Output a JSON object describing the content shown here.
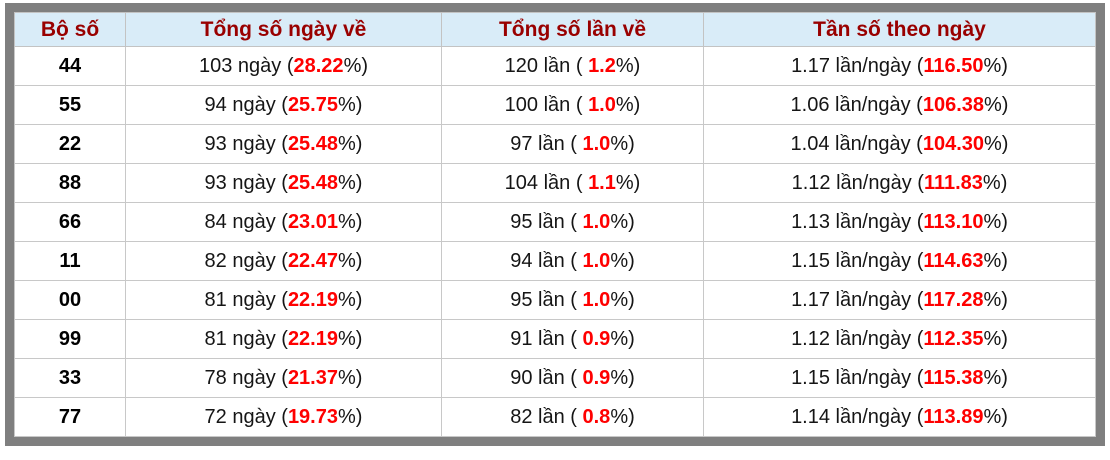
{
  "colors": {
    "frame_gray": "#7f7f7f",
    "header_background": "#d9ecf8",
    "header_text_red": "#990000",
    "percent_red": "#ff0000",
    "cell_border_gray": "#c8c8c8",
    "cell_background": "#ffffff"
  },
  "table": {
    "columns": [
      "Bộ số",
      "Tổng số ngày về",
      "Tổng số lần về",
      "Tần số theo ngày"
    ],
    "rows": [
      {
        "pair": "44",
        "days_prefix": "103 ngày (",
        "days_pct": "28.22",
        "days_suffix": "%)",
        "times_prefix": "120 lần ( ",
        "times_pct": "1.2",
        "times_suffix": "%)",
        "freq_prefix": "1.17 lần/ngày (",
        "freq_pct": "116.50",
        "freq_suffix": "%)"
      },
      {
        "pair": "55",
        "days_prefix": "94 ngày (",
        "days_pct": "25.75",
        "days_suffix": "%)",
        "times_prefix": "100 lần ( ",
        "times_pct": "1.0",
        "times_suffix": "%)",
        "freq_prefix": "1.06 lần/ngày (",
        "freq_pct": "106.38",
        "freq_suffix": "%)"
      },
      {
        "pair": "22",
        "days_prefix": "93 ngày (",
        "days_pct": "25.48",
        "days_suffix": "%)",
        "times_prefix": "97 lần ( ",
        "times_pct": "1.0",
        "times_suffix": "%)",
        "freq_prefix": "1.04 lần/ngày (",
        "freq_pct": "104.30",
        "freq_suffix": "%)"
      },
      {
        "pair": "88",
        "days_prefix": "93 ngày (",
        "days_pct": "25.48",
        "days_suffix": "%)",
        "times_prefix": "104 lần ( ",
        "times_pct": "1.1",
        "times_suffix": "%)",
        "freq_prefix": "1.12 lần/ngày (",
        "freq_pct": "111.83",
        "freq_suffix": "%)"
      },
      {
        "pair": "66",
        "days_prefix": "84 ngày (",
        "days_pct": "23.01",
        "days_suffix": "%)",
        "times_prefix": "95 lần ( ",
        "times_pct": "1.0",
        "times_suffix": "%)",
        "freq_prefix": "1.13 lần/ngày (",
        "freq_pct": "113.10",
        "freq_suffix": "%)"
      },
      {
        "pair": "11",
        "days_prefix": "82 ngày (",
        "days_pct": "22.47",
        "days_suffix": "%)",
        "times_prefix": "94 lần ( ",
        "times_pct": "1.0",
        "times_suffix": "%)",
        "freq_prefix": "1.15 lần/ngày (",
        "freq_pct": "114.63",
        "freq_suffix": "%)"
      },
      {
        "pair": "00",
        "days_prefix": "81 ngày (",
        "days_pct": "22.19",
        "days_suffix": "%)",
        "times_prefix": "95 lần ( ",
        "times_pct": "1.0",
        "times_suffix": "%)",
        "freq_prefix": "1.17 lần/ngày (",
        "freq_pct": "117.28",
        "freq_suffix": "%)"
      },
      {
        "pair": "99",
        "days_prefix": "81 ngày (",
        "days_pct": "22.19",
        "days_suffix": "%)",
        "times_prefix": "91 lần ( ",
        "times_pct": "0.9",
        "times_suffix": "%)",
        "freq_prefix": "1.12 lần/ngày (",
        "freq_pct": "112.35",
        "freq_suffix": "%)"
      },
      {
        "pair": "33",
        "days_prefix": "78 ngày (",
        "days_pct": "21.37",
        "days_suffix": "%)",
        "times_prefix": "90 lần ( ",
        "times_pct": "0.9",
        "times_suffix": "%)",
        "freq_prefix": "1.15 lần/ngày (",
        "freq_pct": "115.38",
        "freq_suffix": "%)"
      },
      {
        "pair": "77",
        "days_prefix": "72 ngày (",
        "days_pct": "19.73",
        "days_suffix": "%)",
        "times_prefix": "82 lần ( ",
        "times_pct": "0.8",
        "times_suffix": "%)",
        "freq_prefix": "1.14 lần/ngày (",
        "freq_pct": "113.89",
        "freq_suffix": "%)"
      }
    ]
  },
  "chart_data": {
    "type": "table",
    "title": "",
    "columns": [
      "Bộ số",
      "Tổng số ngày về",
      "Tổng số lần về",
      "Tần số theo ngày"
    ],
    "rows": [
      [
        "44",
        "103 ngày (28.22%)",
        "120 lần ( 1.2%)",
        "1.17 lần/ngày (116.50%)"
      ],
      [
        "55",
        "94 ngày (25.75%)",
        "100 lần ( 1.0%)",
        "1.06 lần/ngày (106.38%)"
      ],
      [
        "22",
        "93 ngày (25.48%)",
        "97 lần ( 1.0%)",
        "1.04 lần/ngày (104.30%)"
      ],
      [
        "88",
        "93 ngày (25.48%)",
        "104 lần ( 1.1%)",
        "1.12 lần/ngày (111.83%)"
      ],
      [
        "66",
        "84 ngày (23.01%)",
        "95 lần ( 1.0%)",
        "1.13 lần/ngày (113.10%)"
      ],
      [
        "11",
        "82 ngày (22.47%)",
        "94 lần ( 1.0%)",
        "1.15 lần/ngày (114.63%)"
      ],
      [
        "00",
        "81 ngày (22.19%)",
        "95 lần ( 1.0%)",
        "1.17 lần/ngày (117.28%)"
      ],
      [
        "99",
        "81 ngày (22.19%)",
        "91 lần ( 0.9%)",
        "1.12 lần/ngày (112.35%)"
      ],
      [
        "33",
        "78 ngày (21.37%)",
        "90 lần ( 0.9%)",
        "1.15 lần/ngày (115.38%)"
      ],
      [
        "77",
        "72 ngày (19.73%)",
        "82 lần ( 0.8%)",
        "1.14 lần/ngày (113.89%)"
      ]
    ],
    "numeric": {
      "pairs": [
        "44",
        "55",
        "22",
        "88",
        "66",
        "11",
        "00",
        "99",
        "33",
        "77"
      ],
      "days": [
        103,
        94,
        93,
        93,
        84,
        82,
        81,
        81,
        78,
        72
      ],
      "days_pct": [
        28.22,
        25.75,
        25.48,
        25.48,
        23.01,
        22.47,
        22.19,
        22.19,
        21.37,
        19.73
      ],
      "times": [
        120,
        100,
        97,
        104,
        95,
        94,
        95,
        91,
        90,
        82
      ],
      "times_pct": [
        1.2,
        1.0,
        1.0,
        1.1,
        1.0,
        1.0,
        1.0,
        0.9,
        0.9,
        0.8
      ],
      "freq_per_day": [
        1.17,
        1.06,
        1.04,
        1.12,
        1.13,
        1.15,
        1.17,
        1.12,
        1.15,
        1.14
      ],
      "freq_pct": [
        116.5,
        106.38,
        104.3,
        111.83,
        113.1,
        114.63,
        117.28,
        112.35,
        115.38,
        113.89
      ]
    }
  }
}
